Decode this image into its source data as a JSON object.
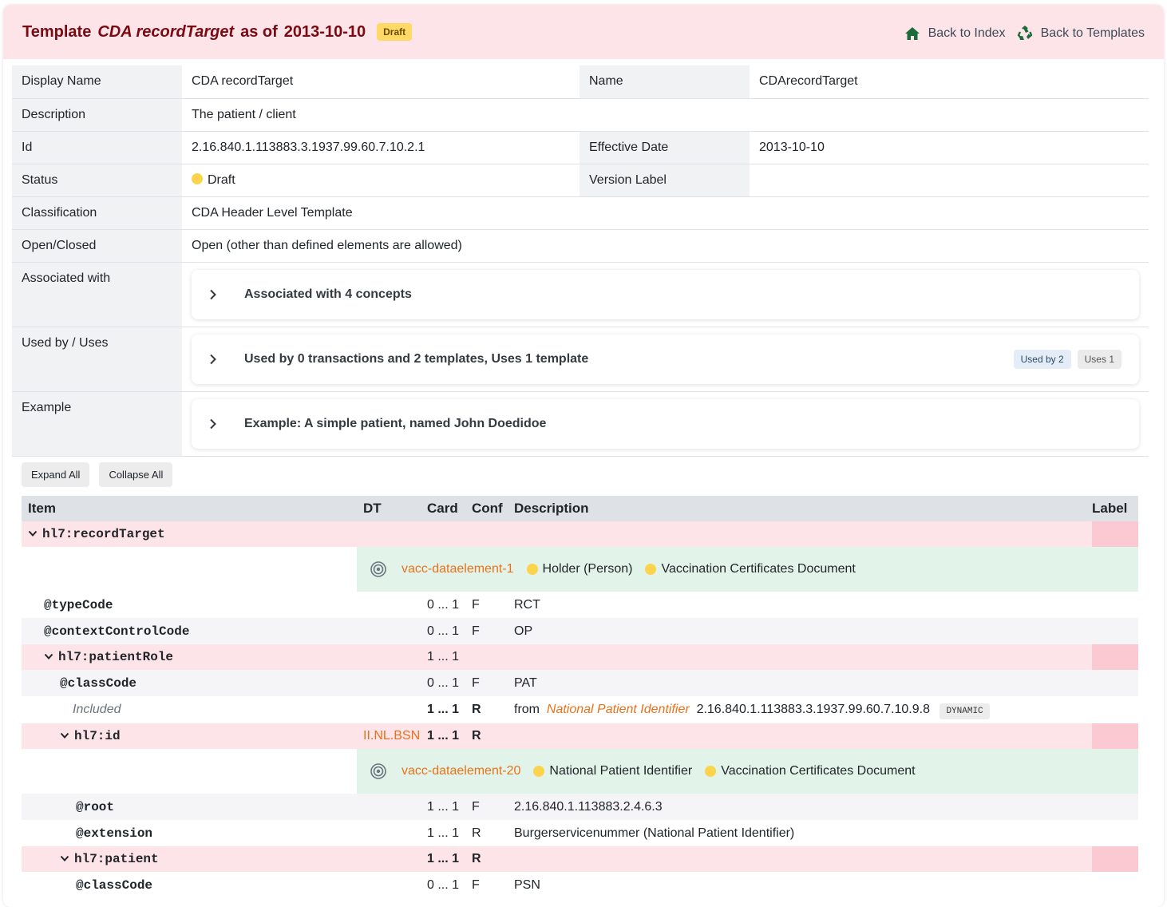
{
  "header": {
    "title_prefix": "Template",
    "template_name": "CDA recordTarget",
    "as_of": "as of",
    "date": "2013-10-10",
    "status_badge": "Draft",
    "nav": {
      "back_index": "Back to Index",
      "back_templates": "Back to Templates"
    }
  },
  "meta": {
    "display_name_label": "Display Name",
    "display_name": "CDA recordTarget",
    "name_label": "Name",
    "name": "CDArecordTarget",
    "description_label": "Description",
    "description": "The patient / client",
    "id_label": "Id",
    "id": "2.16.840.1.113883.3.1937.99.60.7.10.2.1",
    "effective_label": "Effective Date",
    "effective": "2013-10-10",
    "status_label": "Status",
    "status": "Draft",
    "version_label": "Version Label",
    "version": "",
    "classification_label": "Classification",
    "classification": "CDA Header Level Template",
    "open_label": "Open/Closed",
    "open": "Open (other than defined elements are allowed)",
    "assoc_label": "Associated with",
    "assoc": "Associated with 4 concepts",
    "used_label": "Used by / Uses",
    "used": "Used by 0 transactions and 2 templates, Uses 1 template",
    "used_by_pill": "Used by 2",
    "uses_pill": "Uses 1",
    "example_label": "Example",
    "example": "Example: A simple patient, named John Doedidoe"
  },
  "buttons": {
    "expand": "Expand All",
    "collapse": "Collapse All"
  },
  "tree": {
    "headers": {
      "item": "Item",
      "dt": "DT",
      "card": "Card",
      "conf": "Conf",
      "desc": "Description",
      "label": "Label"
    },
    "r1": {
      "item": "hl7:recordTarget"
    },
    "concept1": {
      "id": "vacc-dataelement-1",
      "a": "Holder (Person)",
      "b": "Vaccination Certificates Document"
    },
    "r2": {
      "item": "@typeCode",
      "card": "0 ... 1",
      "conf": "F",
      "desc": "RCT"
    },
    "r3": {
      "item": "@contextControlCode",
      "card": "0 ... 1",
      "conf": "F",
      "desc": "OP"
    },
    "r4": {
      "item": "hl7:patientRole",
      "card": "1 ... 1",
      "conf": ""
    },
    "r5": {
      "item": "@classCode",
      "card": "0 ... 1",
      "conf": "F",
      "desc": "PAT"
    },
    "r6": {
      "item": "Included",
      "card": "1 ... 1",
      "conf": "R",
      "from": "from",
      "link": "National Patient Identifier",
      "oid": "2.16.840.1.113883.3.1937.99.60.7.10.9.8",
      "flag": "DYNAMIC"
    },
    "r7": {
      "item": "hl7:id",
      "dt": "II.NL.BSN",
      "card": "1 ... 1",
      "conf": "R"
    },
    "concept2": {
      "id": "vacc-dataelement-20",
      "a": "National Patient Identifier",
      "b": "Vaccination Certificates Document"
    },
    "r8": {
      "item": "@root",
      "card": "1 ... 1",
      "conf": "F",
      "desc": "2.16.840.1.113883.2.4.6.3"
    },
    "r9": {
      "item": "@extension",
      "card": "1 ... 1",
      "conf": "R",
      "desc": "Burgerservicenummer (National Patient Identifier)"
    },
    "r10": {
      "item": "hl7:patient",
      "card": "1 ... 1",
      "conf": "R"
    },
    "r11": {
      "item": "@classCode",
      "card": "0 ... 1",
      "conf": "F",
      "desc": "PSN"
    }
  },
  "colors": {
    "header_bg": "#fde4e8",
    "title": "#7a0a12",
    "status_dot": "#fcd34d",
    "concept_bg": "#e2f4ea",
    "link_orange": "#e8711a"
  }
}
